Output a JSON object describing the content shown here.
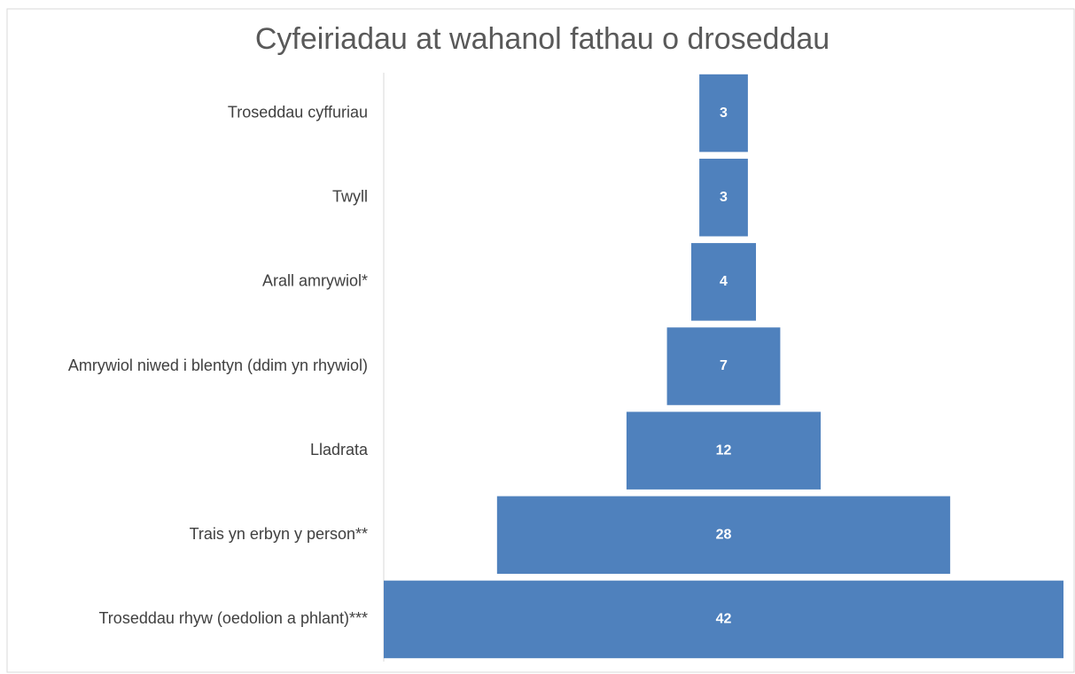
{
  "chart_data": {
    "type": "funnel",
    "title": "Cyfeiriadau at wahanol fathau o droseddau",
    "categories": [
      "Troseddau cyffuriau",
      "Twyll",
      "Arall amrywiol*",
      "Amrywiol niwed i blentyn (ddim yn rhywiol)",
      "Lladrata",
      "Trais yn erbyn y person**",
      "Troseddau rhyw (oedolion a phlant)***"
    ],
    "values": [
      3,
      3,
      4,
      7,
      12,
      28,
      42
    ],
    "color": "#4f81bd"
  }
}
